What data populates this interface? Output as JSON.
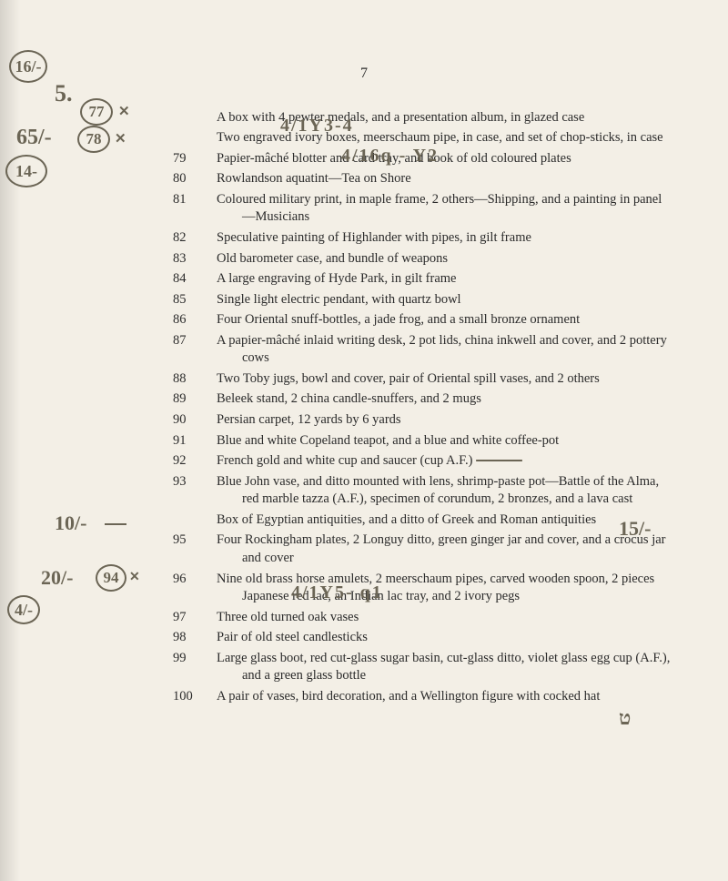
{
  "page_number": "7",
  "entries": [
    {
      "lot": "",
      "lot_display": "",
      "text": "A box with 4 pewter medals, and a presentation album, in glazed case"
    },
    {
      "lot": "",
      "lot_display": "",
      "text": "Two engraved ivory boxes, meerschaum pipe, in case, and set of chop-sticks, in case"
    },
    {
      "lot": "79",
      "text": "Papier-mâché blotter and card tray, and book of old coloured plates"
    },
    {
      "lot": "80",
      "text": "Rowlandson aquatint—Tea on Shore"
    },
    {
      "lot": "81",
      "text": "Coloured military print, in maple frame, 2 others—Shipping, and a painting in panel—Musicians"
    },
    {
      "lot": "82",
      "text": "Speculative painting of Highlander with pipes, in gilt frame"
    },
    {
      "lot": "83",
      "text": "Old barometer case, and bundle of weapons"
    },
    {
      "lot": "84",
      "text": "A large engraving of Hyde Park, in gilt frame"
    },
    {
      "lot": "85",
      "text": "Single light electric pendant, with quartz bowl"
    },
    {
      "lot": "86",
      "text": "Four Oriental snuff-bottles, a jade frog, and a small bronze ornament"
    },
    {
      "lot": "87",
      "text": "A papier-mâché inlaid writing desk, 2 pot lids, china inkwell and cover, and 2 pottery cows"
    },
    {
      "lot": "88",
      "text": "Two Toby jugs, bowl and cover, pair of Oriental spill vases, and 2 others"
    },
    {
      "lot": "89",
      "text": "Beleek stand, 2 china candle-snuffers, and 2 mugs"
    },
    {
      "lot": "90",
      "text": "Persian carpet, 12 yards by 6 yards"
    },
    {
      "lot": "91",
      "text": "Blue and white Copeland teapot, and a blue and white coffee-pot"
    },
    {
      "lot": "92",
      "text": "French gold and white cup and saucer (cup A.F.)"
    },
    {
      "lot": "93",
      "text": "Blue John vase, and ditto mounted with lens, shrimp-paste pot—Battle of the Alma, red marble tazza (A.F.), specimen of corundum, 2 bronzes, and a lava cast"
    },
    {
      "lot": "",
      "lot_display": "",
      "text": "Box of Egyptian antiquities, and a ditto of Greek and Roman antiquities"
    },
    {
      "lot": "95",
      "text": "Four Rockingham plates, 2 Longuy ditto, green ginger jar and cover, and a crocus jar and cover"
    },
    {
      "lot": "96",
      "text": "Nine old brass horse amulets, 2 meerschaum pipes, carved wooden spoon, 2 pieces Japanese red lac, an Indian lac tray, and 2 ivory pegs"
    },
    {
      "lot": "97",
      "text": "Three old turned oak vases"
    },
    {
      "lot": "98",
      "text": "Pair of old steel candlesticks"
    },
    {
      "lot": "99",
      "text": "Large glass boot, red cut-glass sugar basin, cut-glass ditto, violet glass egg cup (A.F.), and a green glass bottle"
    },
    {
      "lot": "100",
      "text": "A pair of vases, bird decoration, and a Wellington figure with cocked hat"
    }
  ],
  "annotations": {
    "top_left_circle": "16/-",
    "five": "5.",
    "circ77": "77",
    "x77": "✕",
    "sixty5": "65/-",
    "circ78": "78",
    "x78": "✕",
    "fourteen": "14-",
    "hw1": "4/1Y3-4",
    "hw2": "4/16q - Y2",
    "ten": "10/-",
    "twenty": "20/-",
    "circ94": "94",
    "x94": "✕",
    "four": "4/-",
    "hw3": "4/1Y5- q1",
    "fifteen": "15/-",
    "umark": "ט"
  }
}
